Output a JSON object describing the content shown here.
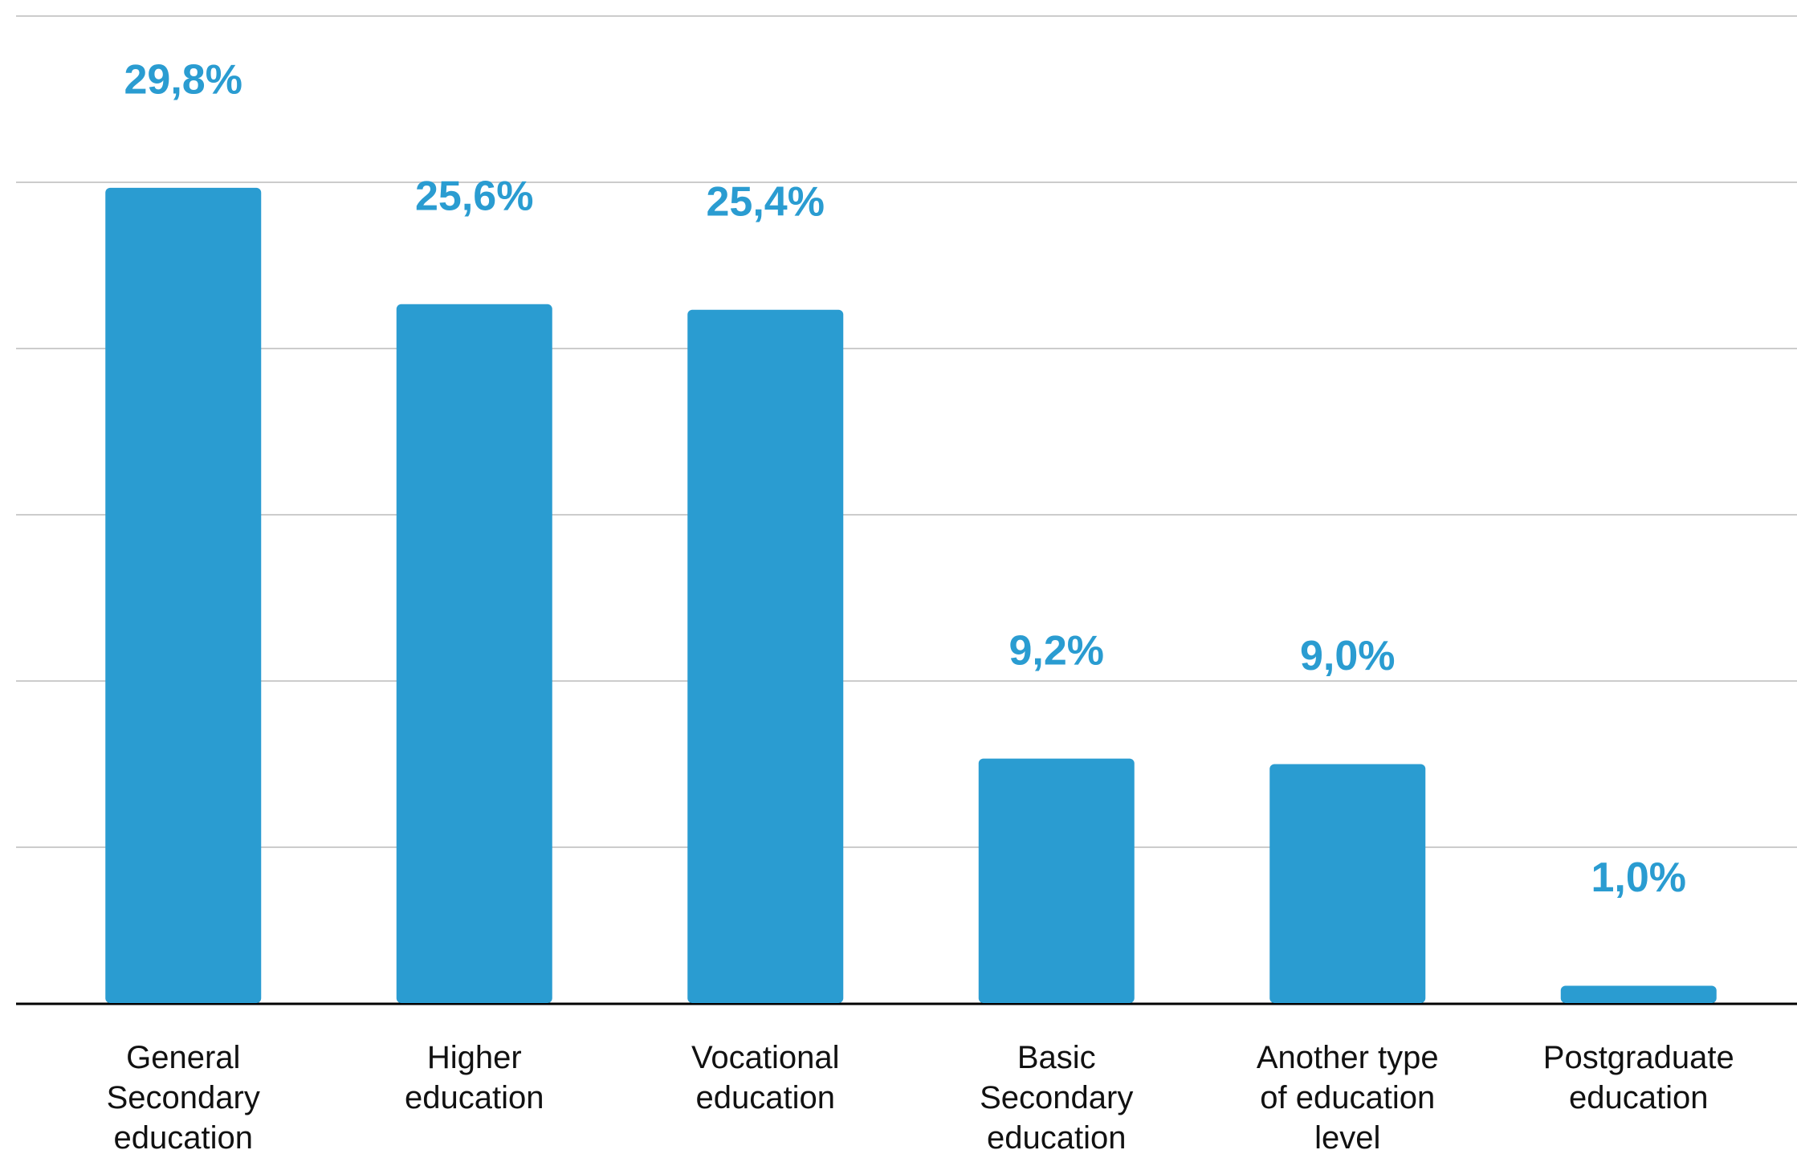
{
  "chart_data": {
    "type": "bar",
    "categories": [
      "General Secondary education",
      "Higher education",
      "Vocational education",
      "Basic Secondary education",
      "Another type of education level",
      "Postgraduate education"
    ],
    "values": [
      29.8,
      25.6,
      25.4,
      9.2,
      9.0,
      1.0
    ],
    "value_labels": [
      "29,8%",
      "25,6%",
      "25,4%",
      "9,2%",
      "9,0%",
      "1,0%"
    ],
    "color": "#2a9cd1",
    "ylim": [
      0,
      36
    ],
    "yticks": [
      0,
      6,
      12,
      18,
      24,
      30,
      36
    ],
    "grid": true
  }
}
